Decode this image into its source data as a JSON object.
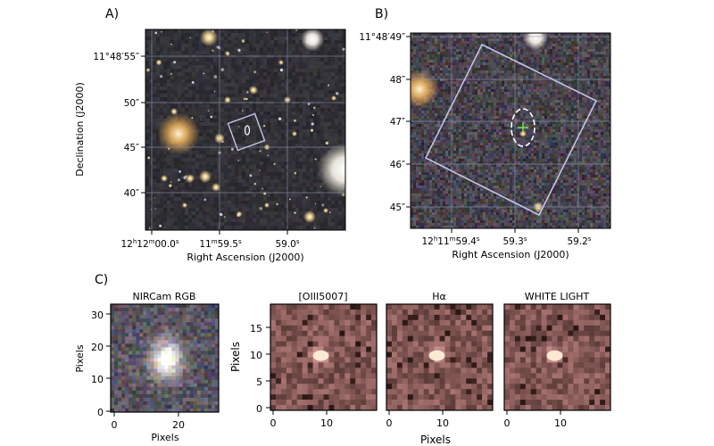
{
  "colors": {
    "sky_dark": "#22252c",
    "grid": "#8f97b4",
    "box": "#c3c6e6",
    "marker_ellipse": "#ffffff",
    "marker_cross": "#7de04e",
    "cutout_base": "#4a3535",
    "cutout_peak": "#fff4dc"
  },
  "panel_a": {
    "label": "A)",
    "xlabel": "Right Ascension (J2000)",
    "ylabel": "Declination (J2000)",
    "x_ticks": [
      {
        "h": "12",
        "hsup": "h",
        "m": "12",
        "msup": "m",
        "s": "00.0",
        "ssup": "s"
      },
      {
        "h": "",
        "hsup": "",
        "m": "11",
        "msup": "m",
        "s": "59.5",
        "ssup": "s"
      },
      {
        "h": "",
        "hsup": "",
        "m": "",
        "msup": "",
        "s": "59.0",
        "ssup": "s"
      }
    ],
    "y_ticks": [
      "11°48′55″",
      "50″",
      "45″",
      "40″"
    ]
  },
  "panel_b": {
    "label": "B)",
    "xlabel": "Right Ascension (J2000)",
    "x_ticks": [
      {
        "h": "12",
        "hsup": "h",
        "m": "11",
        "msup": "m",
        "s": "59.4",
        "ssup": "s"
      },
      {
        "h": "",
        "hsup": "",
        "m": "",
        "msup": "",
        "s": "59.3",
        "ssup": "s"
      },
      {
        "h": "",
        "hsup": "",
        "m": "",
        "msup": "",
        "s": "59.2",
        "ssup": "s"
      }
    ],
    "y_ticks": [
      "11°48′49″",
      "48″",
      "47″",
      "46″",
      "45″"
    ]
  },
  "panel_c": {
    "label": "C)",
    "rgb": {
      "title": "NIRCam RGB",
      "xlabel": "Pixels",
      "ylabel": "Pixels",
      "x_ticks": [
        "0",
        "20"
      ],
      "y_ticks": [
        "0",
        "10",
        "20",
        "30"
      ]
    },
    "maps": [
      {
        "title": "[OIII5007]"
      },
      {
        "title": "Hα"
      },
      {
        "title": "WHITE LIGHT"
      }
    ],
    "map_ylabel": "Pixels",
    "map_xlabel": "Pixels",
    "map_x_ticks": [
      "0",
      "10"
    ],
    "map_y_ticks": [
      "0",
      "5",
      "10",
      "15"
    ]
  }
}
